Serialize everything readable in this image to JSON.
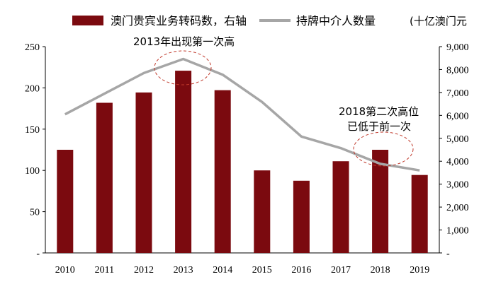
{
  "chart_data": {
    "type": "bar+line",
    "categories": [
      "2010",
      "2011",
      "2012",
      "2013",
      "2014",
      "2015",
      "2016",
      "2017",
      "2018",
      "2019"
    ],
    "series": [
      {
        "name": "澳门贵宾业务转码数，右轴",
        "type": "bar",
        "axis": "right",
        "color": "#7B0A0F",
        "values": [
          4500,
          6550,
          7000,
          7950,
          7100,
          3600,
          3150,
          4000,
          4500,
          3400
        ]
      },
      {
        "name": "持牌中介人数量",
        "type": "line",
        "axis": "left",
        "color": "#A6A6A6",
        "values": [
          168,
          193,
          218,
          235,
          216,
          183,
          141,
          127,
          108,
          100
        ]
      }
    ],
    "unit_label": "(十亿澳门元",
    "left_axis": {
      "ylim": [
        0,
        250
      ],
      "ticks": [
        {
          "value": 0,
          "label": "-"
        },
        {
          "value": 50,
          "label": "50"
        },
        {
          "value": 100,
          "label": "100"
        },
        {
          "value": 150,
          "label": "150"
        },
        {
          "value": 200,
          "label": "200"
        },
        {
          "value": 250,
          "label": "250"
        }
      ]
    },
    "right_axis": {
      "ylim": [
        0,
        9000
      ],
      "ticks": [
        {
          "value": 0,
          "label": "-"
        },
        {
          "value": 1000,
          "label": "1,000"
        },
        {
          "value": 2000,
          "label": "2,000"
        },
        {
          "value": 3000,
          "label": "3,000"
        },
        {
          "value": 4000,
          "label": "4,000"
        },
        {
          "value": 5000,
          "label": "5,000"
        },
        {
          "value": 6000,
          "label": "6,000"
        },
        {
          "value": 7000,
          "label": "7,000"
        },
        {
          "value": 8000,
          "label": "8,000"
        },
        {
          "value": 9000,
          "label": "9,000"
        }
      ]
    },
    "annotations": [
      {
        "lines": [
          "2013年出现第一次高"
        ],
        "target_index": 3,
        "ellipse_color": "#C0392B"
      },
      {
        "lines": [
          "2018第二次高位",
          "已低于前一次"
        ],
        "target_index": 8,
        "ellipse_color": "#C0392B"
      }
    ],
    "grid": false,
    "legend_position": "top"
  }
}
